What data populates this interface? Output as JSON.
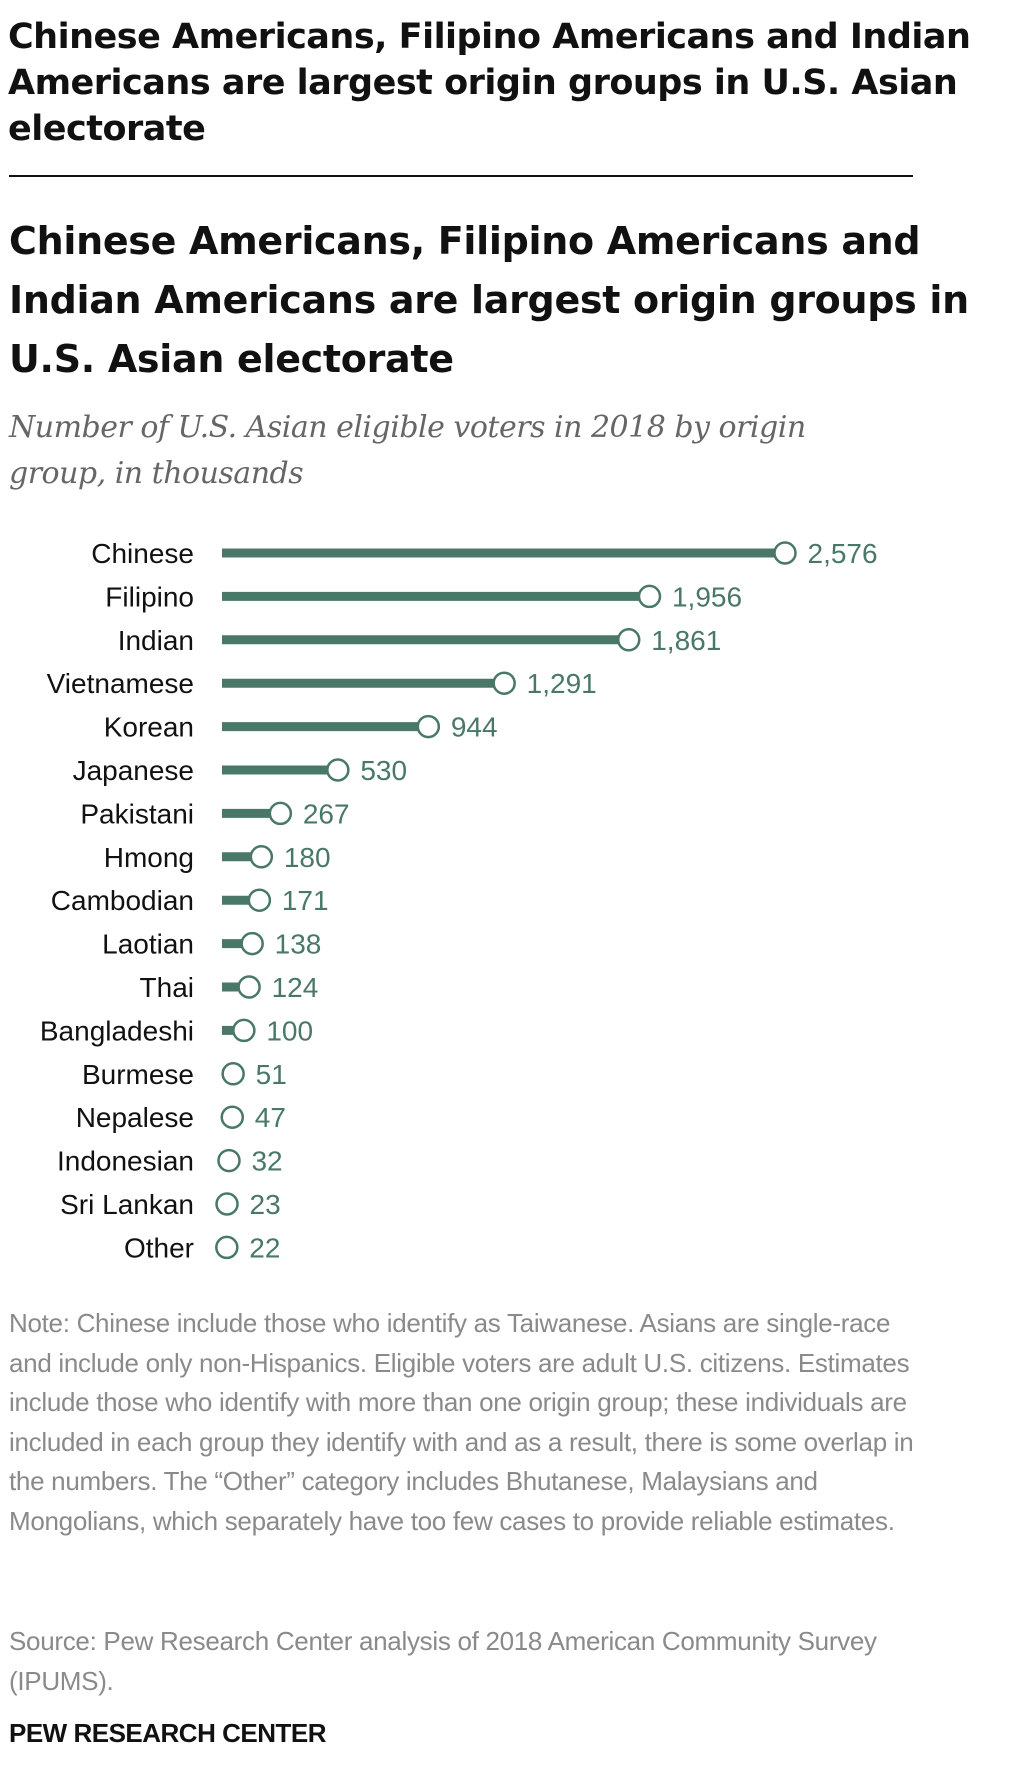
{
  "header": {
    "headline": "Chinese Americans, Filipino Americans and Indian Americans are largest origin groups in U.S. Asian electorate"
  },
  "chart_data": {
    "type": "bar",
    "orientation": "horizontal",
    "style": "lollipop",
    "title": "Chinese Americans, Filipino Americans and Indian Americans are largest origin groups in U.S. Asian electorate",
    "subtitle": "Number of U.S. Asian eligible voters in 2018 by origin group, in thousands",
    "categories": [
      "Chinese",
      "Filipino",
      "Indian",
      "Vietnamese",
      "Korean",
      "Japanese",
      "Pakistani",
      "Hmong",
      "Cambodian",
      "Laotian",
      "Thai",
      "Bangladeshi",
      "Burmese",
      "Nepalese",
      "Indonesian",
      "Sri Lankan",
      "Other"
    ],
    "values": [
      2576,
      1956,
      1861,
      1291,
      944,
      530,
      267,
      180,
      171,
      138,
      124,
      100,
      51,
      47,
      32,
      23,
      22
    ],
    "value_labels": [
      "2,576",
      "1,956",
      "1,861",
      "1,291",
      "944",
      "530",
      "267",
      "180",
      "171",
      "138",
      "124",
      "100",
      "51",
      "47",
      "32",
      "23",
      "22"
    ],
    "xlabel": "",
    "ylabel": "",
    "xlim": [
      0,
      2576
    ],
    "grid": false,
    "color": "#4a7868"
  },
  "footer": {
    "note": "Note: Chinese include those who identify as Taiwanese. Asians are single-race and include only non-Hispanics. Eligible voters are adult U.S. citizens. Estimates include those who identify with more than one origin group; these individuals are included in each group they identify with and as a result, there is some overlap in the numbers. The “Other” category includes Bhutanese, Malaysians and Mongolians, which separately have too few cases to provide reliable estimates.",
    "source": "Source: Pew Research Center analysis of 2018 American Community Survey (IPUMS).",
    "brand": "PEW RESEARCH CENTER"
  }
}
